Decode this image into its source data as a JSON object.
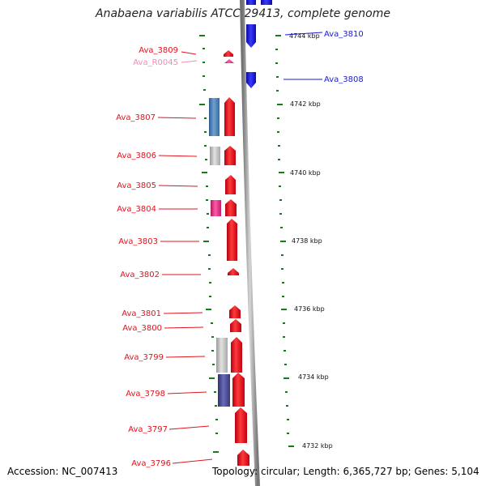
{
  "title": "Anabaena variabilis ATCC 29413, complete genome",
  "accession": "Accession: NC_007413",
  "topology": "Topology: circular; Length: 6,365,727 bp; Genes: 5,104",
  "scale_labels": [
    "4744 kbp",
    "4742 kbp",
    "4740 kbp",
    "4738 kbp",
    "4736 kbp",
    "4734 kbp",
    "4732 kbp"
  ],
  "genes_right": [
    {
      "name": "Ava_3810",
      "color": "#1a1acc"
    },
    {
      "name": "Ava_3808",
      "color": "#1a1acc"
    }
  ],
  "genes_left": [
    {
      "name": "Ava_3809",
      "color": "#e0141e"
    },
    {
      "name": "Ava_R0045",
      "color": "#f08cb4"
    },
    {
      "name": "Ava_3807",
      "color": "#e0141e"
    },
    {
      "name": "Ava_3806",
      "color": "#e0141e"
    },
    {
      "name": "Ava_3805",
      "color": "#e0141e"
    },
    {
      "name": "Ava_3804",
      "color": "#e0141e"
    },
    {
      "name": "Ava_3803",
      "color": "#e0141e"
    },
    {
      "name": "Ava_3802",
      "color": "#e0141e"
    },
    {
      "name": "Ava_3801",
      "color": "#e0141e"
    },
    {
      "name": "Ava_3800",
      "color": "#e0141e"
    },
    {
      "name": "Ava_3799",
      "color": "#e0141e"
    },
    {
      "name": "Ava_3798",
      "color": "#e0141e"
    },
    {
      "name": "Ava_3797",
      "color": "#e0141e"
    },
    {
      "name": "Ava_3796",
      "color": "#e0141e"
    }
  ],
  "colors": {
    "forward_gene": "#e0141e",
    "reverse_gene": "#1a1acc",
    "rna_gene": "#e8449a",
    "steelblue_gene": "#4a7fb5",
    "grey_gene": "#c4c4c4",
    "slate_gene": "#50509a",
    "tick_green": "#1a7a1a",
    "backbone": "#9a9a9a"
  }
}
